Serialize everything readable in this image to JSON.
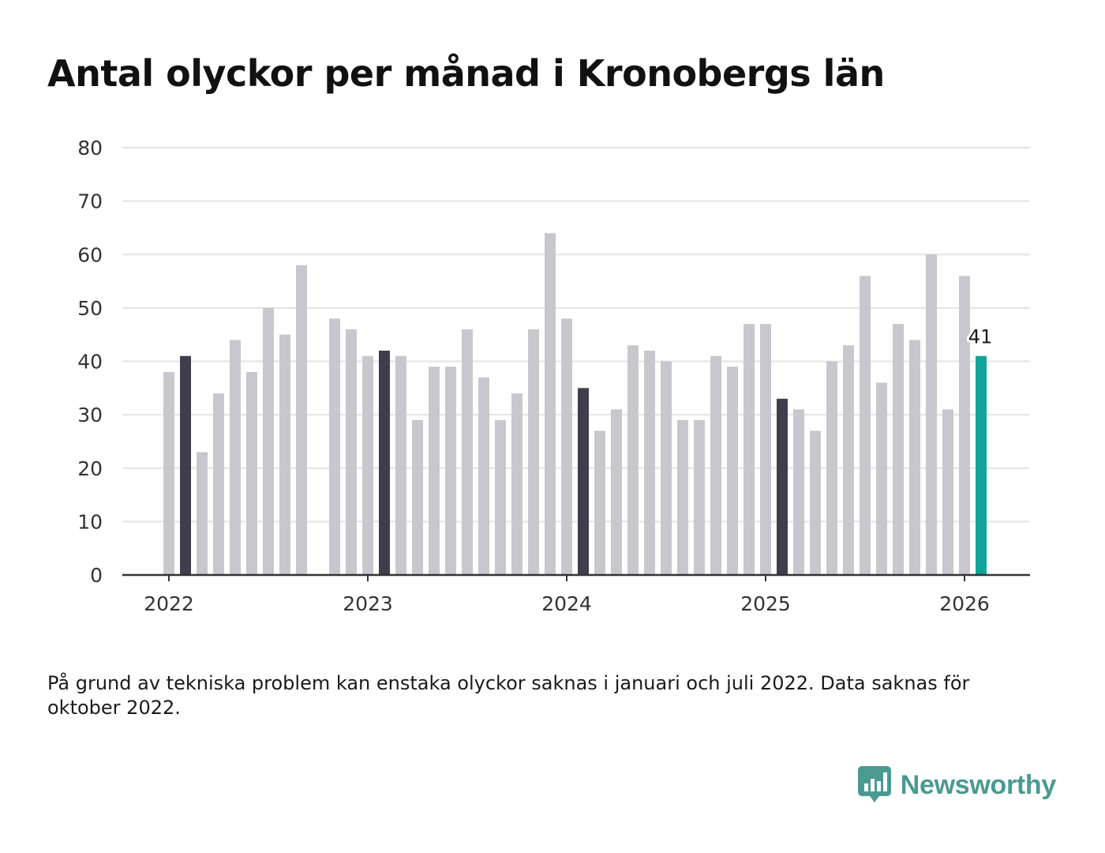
{
  "title": "Antal olyckor per månad i Kronobergs län",
  "footnote": "På grund av tekniska problem kan enstaka olyckor saknas i januari och juli 2022. Data saknas för oktober 2022.",
  "brand": {
    "name": "Newsworthy",
    "icon": "newsworthy-logo-icon"
  },
  "colors": {
    "bar": "#c8c7ce",
    "january_bar": "#3f3e4c",
    "latest_bar": "#12a39a",
    "grid": "#e3e3e3",
    "axis": "#333333",
    "brand": "#4a9a92"
  },
  "chart_data": {
    "type": "bar",
    "title": "Antal olyckor per månad i Kronobergs län",
    "xlabel": "",
    "ylabel": "",
    "ylim": [
      0,
      80
    ],
    "yticks": [
      0,
      10,
      20,
      30,
      40,
      50,
      60,
      70,
      80
    ],
    "grid": true,
    "x_tick_labels": [
      {
        "label": "2022",
        "index": 0
      },
      {
        "label": "2023",
        "index": 12
      },
      {
        "label": "2024",
        "index": 24
      },
      {
        "label": "2025",
        "index": 36
      },
      {
        "label": "2026",
        "index": 48
      }
    ],
    "categories": [
      "2022-01",
      "2022-02",
      "2022-03",
      "2022-04",
      "2022-05",
      "2022-06",
      "2022-07",
      "2022-08",
      "2022-09",
      "2022-10",
      "2022-11",
      "2022-12",
      "2023-01",
      "2023-02",
      "2023-03",
      "2023-04",
      "2023-05",
      "2023-06",
      "2023-07",
      "2023-08",
      "2023-09",
      "2023-10",
      "2023-11",
      "2023-12",
      "2024-01",
      "2024-02",
      "2024-03",
      "2024-04",
      "2024-05",
      "2024-06",
      "2024-07",
      "2024-08",
      "2024-09",
      "2024-10",
      "2024-11",
      "2024-12",
      "2025-01",
      "2025-02",
      "2025-03",
      "2025-04",
      "2025-05",
      "2025-06",
      "2025-07",
      "2025-08",
      "2025-09",
      "2025-10",
      "2025-11",
      "2025-12",
      "2026-01",
      "2026-02"
    ],
    "values": [
      38,
      41,
      23,
      34,
      44,
      38,
      50,
      45,
      58,
      null,
      48,
      46,
      41,
      42,
      41,
      29,
      39,
      39,
      46,
      37,
      29,
      34,
      46,
      64,
      48,
      35,
      27,
      31,
      43,
      42,
      40,
      29,
      29,
      41,
      39,
      47,
      47,
      33,
      31,
      27,
      40,
      43,
      56,
      36,
      47,
      44,
      60,
      31,
      56,
      41
    ],
    "highlighted_months": [
      "2022-02",
      "2023-02",
      "2024-02",
      "2025-02"
    ],
    "latest": {
      "category": "2026-02",
      "value": 41,
      "label": "41"
    }
  }
}
